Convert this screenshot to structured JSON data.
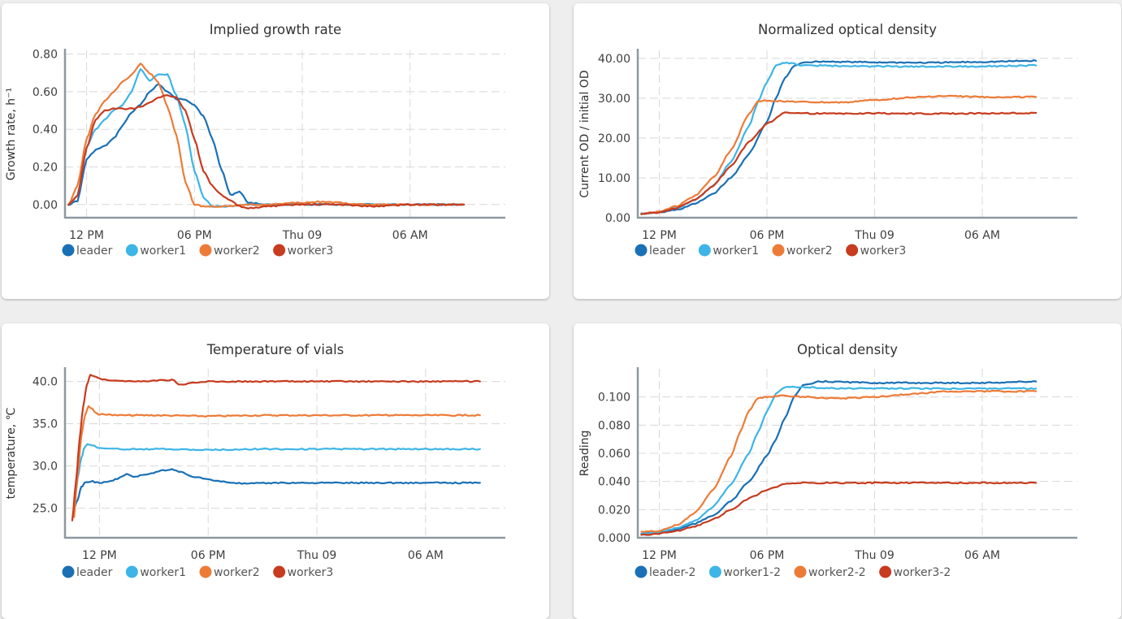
{
  "colors": {
    "leader": "#1a70b5",
    "worker1": "#3db5e6",
    "worker2": "#ed7b38",
    "worker3": "#c73b1e"
  },
  "chart_data": [
    {
      "type": "line",
      "title": "Implied growth rate",
      "ylabel": "Growth rate, h⁻¹",
      "xlabel": "",
      "ylim": [
        -0.07,
        0.82
      ],
      "yticks": [
        "0.00",
        "0.20",
        "0.40",
        "0.60",
        "0.80"
      ],
      "ytick_values": [
        0,
        0.2,
        0.4,
        0.6,
        0.8
      ],
      "xlim": [
        -1.2,
        23.3
      ],
      "xticks": [
        "12 PM",
        "06 PM",
        "Thu 09",
        "06 AM"
      ],
      "xtick_values": [
        0,
        6,
        12,
        18
      ],
      "grid": true,
      "legend": "bottom-left",
      "series": [
        {
          "name": "leader",
          "color": "#1a70b5",
          "x": [
            -1,
            -0.5,
            0,
            0.5,
            1,
            1.5,
            2,
            2.5,
            3,
            3.5,
            4,
            4.5,
            5,
            5.5,
            6,
            6.5,
            7,
            7.5,
            8,
            8.5,
            9,
            10,
            12,
            14,
            16,
            18,
            20,
            21
          ],
          "y": [
            0,
            0.02,
            0.24,
            0.29,
            0.31,
            0.35,
            0.42,
            0.49,
            0.53,
            0.6,
            0.64,
            0.6,
            0.56,
            0.56,
            0.53,
            0.47,
            0.35,
            0.19,
            0.05,
            0.07,
            0.01,
            0,
            0,
            0,
            0,
            0,
            0,
            0
          ]
        },
        {
          "name": "worker1",
          "color": "#3db5e6",
          "x": [
            -1,
            -0.5,
            0,
            0.5,
            1,
            1.5,
            2,
            2.5,
            3,
            3.5,
            4,
            4.5,
            5,
            5.5,
            6,
            6.5,
            7,
            7.5,
            8,
            9,
            10,
            12,
            14,
            16,
            18,
            20,
            21
          ],
          "y": [
            0,
            0.05,
            0.3,
            0.4,
            0.45,
            0.5,
            0.53,
            0.6,
            0.72,
            0.66,
            0.69,
            0.69,
            0.58,
            0.42,
            0.18,
            0.04,
            -0.01,
            -0.01,
            -0.01,
            0,
            0,
            0,
            0,
            0,
            0,
            0,
            0
          ]
        },
        {
          "name": "worker2",
          "color": "#ed7b38",
          "x": [
            -1,
            -0.5,
            0,
            0.5,
            1,
            1.5,
            2,
            2.5,
            3,
            3.5,
            4,
            4.5,
            5,
            5.5,
            6,
            6.5,
            7,
            7.5,
            8,
            9,
            10,
            12,
            13,
            14,
            15,
            16,
            18,
            20,
            21
          ],
          "y": [
            0,
            0.1,
            0.35,
            0.48,
            0.55,
            0.6,
            0.65,
            0.69,
            0.75,
            0.7,
            0.65,
            0.52,
            0.37,
            0.12,
            0,
            -0.01,
            -0.01,
            -0.01,
            -0.01,
            0,
            0,
            0.01,
            0.015,
            0.01,
            0,
            0,
            0,
            0,
            0
          ]
        },
        {
          "name": "worker3",
          "color": "#c73b1e",
          "x": [
            -1,
            -0.5,
            0,
            0.5,
            1,
            1.5,
            2,
            2.5,
            3,
            3.5,
            4,
            4.5,
            5,
            5.5,
            6,
            6.5,
            7,
            7.5,
            8,
            8.5,
            9,
            10,
            12,
            14,
            16,
            18,
            20,
            21
          ],
          "y": [
            0,
            0.05,
            0.3,
            0.45,
            0.5,
            0.51,
            0.51,
            0.51,
            0.52,
            0.54,
            0.57,
            0.58,
            0.57,
            0.5,
            0.35,
            0.18,
            0.1,
            0.05,
            0.02,
            -0.01,
            -0.02,
            -0.01,
            0,
            0,
            -0.01,
            0,
            0,
            0
          ]
        }
      ]
    },
    {
      "type": "line",
      "title": "Normalized optical density",
      "ylabel": "Current OD / initial OD",
      "xlabel": "",
      "ylim": [
        0,
        42
      ],
      "yticks": [
        "0.00",
        "10.00",
        "20.00",
        "30.00",
        "40.00"
      ],
      "ytick_values": [
        0,
        10,
        20,
        30,
        40
      ],
      "xlim": [
        -1.2,
        23.3
      ],
      "xticks": [
        "12 PM",
        "06 PM",
        "Thu 09",
        "06 AM"
      ],
      "xtick_values": [
        0,
        6,
        12,
        18
      ],
      "grid": true,
      "legend": "bottom-left",
      "series": [
        {
          "name": "leader",
          "color": "#1a70b5",
          "x": [
            -1,
            0,
            1,
            2,
            3,
            4,
            5,
            6,
            6.5,
            7,
            7.5,
            8,
            9,
            12,
            15,
            18,
            21
          ],
          "y": [
            1,
            1.3,
            2,
            3.5,
            6,
            10,
            16,
            24,
            30,
            35,
            38,
            39,
            39.2,
            39,
            38.9,
            39.1,
            39.4
          ]
        },
        {
          "name": "worker1",
          "color": "#3db5e6",
          "x": [
            -1,
            0,
            1,
            2,
            3,
            4,
            5,
            5.5,
            6,
            6.5,
            7,
            7.5,
            8,
            12,
            15,
            18,
            21
          ],
          "y": [
            1,
            1.4,
            2.5,
            4.5,
            8,
            14,
            23,
            29,
            34,
            38.3,
            38.8,
            38.7,
            38.2,
            38,
            37.9,
            38,
            38.2
          ]
        },
        {
          "name": "worker2",
          "color": "#ed7b38",
          "x": [
            -1,
            0,
            1,
            2,
            3,
            4,
            5,
            5.5,
            6,
            7,
            8,
            10,
            12,
            14,
            16,
            18,
            21
          ],
          "y": [
            1,
            1.5,
            3,
            5.5,
            10,
            17,
            26,
            29.3,
            29.4,
            29.2,
            29,
            28.9,
            29.5,
            30.2,
            30.5,
            30.3,
            30.3
          ]
        },
        {
          "name": "worker3",
          "color": "#c73b1e",
          "x": [
            -1,
            0,
            1,
            2,
            3,
            4,
            5,
            6,
            7,
            8,
            10,
            12,
            15,
            18,
            21
          ],
          "y": [
            1,
            1.3,
            2.5,
            4.5,
            8,
            13,
            19,
            23.5,
            26.5,
            26.2,
            26.1,
            26.2,
            26.1,
            26.2,
            26.3
          ]
        }
      ]
    },
    {
      "type": "line",
      "title": "Temperature of vials",
      "ylabel": "temperature, ℃",
      "xlabel": "",
      "ylim": [
        21.5,
        41.5
      ],
      "yticks": [
        "25.0",
        "30.0",
        "35.0",
        "40.0"
      ],
      "ytick_values": [
        25,
        30,
        35,
        40
      ],
      "xlim": [
        -1.9,
        22.4
      ],
      "xticks": [
        "12 PM",
        "06 PM",
        "Thu 09",
        "06 AM"
      ],
      "xtick_values": [
        0,
        6,
        12,
        18
      ],
      "grid": true,
      "legend": "bottom-left",
      "series": [
        {
          "name": "leader",
          "color": "#1a70b5",
          "x": [
            -1.4,
            -1.2,
            -1,
            -0.8,
            -0.5,
            0,
            0.5,
            1,
            1.5,
            2,
            2.5,
            3,
            3.5,
            4,
            4.5,
            5,
            6,
            7,
            8,
            10,
            12,
            15,
            18,
            21
          ],
          "y": [
            25,
            26,
            27.5,
            28,
            28.2,
            28,
            28.1,
            28.5,
            29,
            28.7,
            29,
            29.2,
            29.5,
            29.6,
            29.3,
            28.8,
            28.4,
            28.1,
            27.9,
            28,
            28,
            28,
            28,
            28
          ]
        },
        {
          "name": "worker1",
          "color": "#3db5e6",
          "x": [
            -1.4,
            -1.2,
            -1,
            -0.8,
            -0.6,
            -0.3,
            0,
            1,
            3,
            6,
            9,
            12,
            15,
            18,
            21
          ],
          "y": [
            25,
            28.5,
            31,
            32.3,
            32.6,
            32.4,
            32.1,
            32,
            32,
            31.9,
            32,
            32,
            32,
            32,
            32
          ]
        },
        {
          "name": "worker2",
          "color": "#ed7b38",
          "x": [
            -1.4,
            -1.2,
            -1,
            -0.8,
            -0.6,
            -0.4,
            -0.2,
            0,
            1,
            3,
            6,
            9,
            12,
            15,
            18,
            21
          ],
          "y": [
            24,
            29,
            33.5,
            36,
            37,
            36.8,
            36.3,
            36.1,
            36,
            36,
            35.9,
            36,
            36,
            36,
            36,
            36
          ]
        },
        {
          "name": "worker3",
          "color": "#c73b1e",
          "x": [
            -1.5,
            -1.3,
            -1.1,
            -0.9,
            -0.7,
            -0.5,
            -0.2,
            0,
            1,
            2,
            3,
            4,
            4.5,
            5,
            6,
            9,
            12,
            15,
            18,
            21
          ],
          "y": [
            23.5,
            28,
            33,
            37,
            39.5,
            40.8,
            40.6,
            40.3,
            40.1,
            40,
            40.1,
            40.2,
            39.6,
            39.8,
            40,
            40,
            40,
            40,
            40,
            40
          ]
        }
      ]
    },
    {
      "type": "line",
      "title": "Optical density",
      "ylabel": "Reading",
      "xlabel": "",
      "ylim": [
        0,
        0.12
      ],
      "yticks": [
        "0.000",
        "0.020",
        "0.040",
        "0.060",
        "0.080",
        "0.100"
      ],
      "ytick_values": [
        0,
        0.02,
        0.04,
        0.06,
        0.08,
        0.1
      ],
      "xlim": [
        -1.2,
        23.3
      ],
      "xticks": [
        "12 PM",
        "06 PM",
        "Thu 09",
        "06 AM"
      ],
      "xtick_values": [
        0,
        6,
        12,
        18
      ],
      "grid": true,
      "legend": "bottom-left",
      "series": [
        {
          "name": "leader-2",
          "color": "#1a70b5",
          "x": [
            -1,
            0,
            1,
            2,
            3,
            4,
            5,
            6,
            6.5,
            7,
            7.5,
            8,
            9,
            12,
            15,
            18,
            21
          ],
          "y": [
            0.003,
            0.004,
            0.006,
            0.01,
            0.016,
            0.026,
            0.04,
            0.058,
            0.07,
            0.085,
            0.1,
            0.108,
            0.111,
            0.11,
            0.11,
            0.11,
            0.111
          ]
        },
        {
          "name": "worker1-2",
          "color": "#3db5e6",
          "x": [
            -1,
            0,
            1,
            2,
            3,
            4,
            5,
            5.5,
            6,
            6.5,
            7,
            8,
            10,
            12,
            15,
            18,
            21
          ],
          "y": [
            0.003,
            0.004,
            0.007,
            0.012,
            0.022,
            0.038,
            0.06,
            0.075,
            0.09,
            0.102,
            0.107,
            0.107,
            0.106,
            0.106,
            0.106,
            0.106,
            0.106
          ]
        },
        {
          "name": "worker2-2",
          "color": "#ed7b38",
          "x": [
            -1,
            0,
            1,
            2,
            3,
            4,
            4.5,
            5,
            5.5,
            6,
            7,
            8,
            10,
            12,
            14,
            16,
            18,
            21
          ],
          "y": [
            0.004,
            0.005,
            0.009,
            0.018,
            0.034,
            0.058,
            0.075,
            0.09,
            0.099,
            0.1,
            0.101,
            0.1,
            0.099,
            0.1,
            0.102,
            0.104,
            0.104,
            0.104
          ]
        },
        {
          "name": "worker3-2",
          "color": "#c73b1e",
          "x": [
            -1,
            0,
            1,
            2,
            3,
            4,
            5,
            6,
            7,
            8,
            10,
            12,
            15,
            18,
            21
          ],
          "y": [
            0.002,
            0.003,
            0.005,
            0.008,
            0.013,
            0.02,
            0.028,
            0.034,
            0.038,
            0.039,
            0.039,
            0.039,
            0.039,
            0.039,
            0.039
          ]
        }
      ]
    }
  ]
}
